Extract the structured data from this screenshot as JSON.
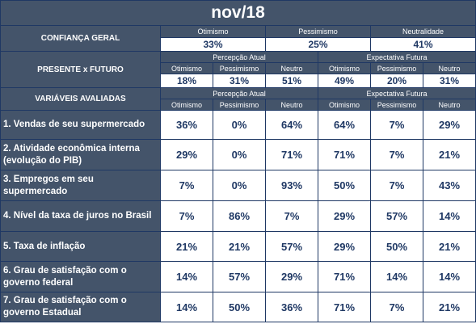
{
  "title": "nov/18",
  "confianca": {
    "label": "CONFIANÇA GERAL",
    "headers": [
      "Otimismo",
      "Pessimismo",
      "Neutralidade"
    ],
    "values": [
      "33%",
      "25%",
      "41%"
    ]
  },
  "presente": {
    "label": "PRESENTE x FUTURO",
    "group_atual": "Percepção Atual",
    "group_futura": "Expectativa Futura",
    "col_headers": [
      "Otimismo",
      "Pessimismo",
      "Neutro",
      "Otimismo",
      "Pessimismo",
      "Neutro"
    ],
    "values": [
      "18%",
      "31%",
      "51%",
      "49%",
      "20%",
      "31%"
    ]
  },
  "variaveis": {
    "label": "VARIÁVEIS AVALIADAS",
    "group_atual": "Percepção Atual",
    "group_futura": "Expectativa Futura",
    "col_headers": [
      "Otimismo",
      "Pessimismo",
      "Neutro",
      "Otimismo",
      "Pessimismo",
      "Neutro"
    ]
  },
  "rows": [
    {
      "label": "1. Vendas de seu supermercado",
      "values": [
        "36%",
        "0%",
        "64%",
        "64%",
        "7%",
        "29%"
      ]
    },
    {
      "label": "2. Atividade econômica interna (evolução do PIB)",
      "values": [
        "29%",
        "0%",
        "71%",
        "71%",
        "7%",
        "21%"
      ]
    },
    {
      "label": "3. Empregos em seu supermercado",
      "values": [
        "7%",
        "0%",
        "93%",
        "50%",
        "7%",
        "43%"
      ]
    },
    {
      "label": "4. Nível da taxa de juros no Brasil",
      "values": [
        "7%",
        "86%",
        "7%",
        "29%",
        "57%",
        "14%"
      ]
    },
    {
      "label": "5. Taxa de inflação",
      "values": [
        "21%",
        "21%",
        "57%",
        "29%",
        "50%",
        "21%"
      ]
    },
    {
      "label": "6. Grau de satisfação com o governo federal",
      "values": [
        "14%",
        "57%",
        "29%",
        "71%",
        "14%",
        "14%"
      ]
    },
    {
      "label": "7. Grau de satisfação com o governo Estadual",
      "values": [
        "14%",
        "50%",
        "36%",
        "71%",
        "7%",
        "21%"
      ]
    }
  ]
}
